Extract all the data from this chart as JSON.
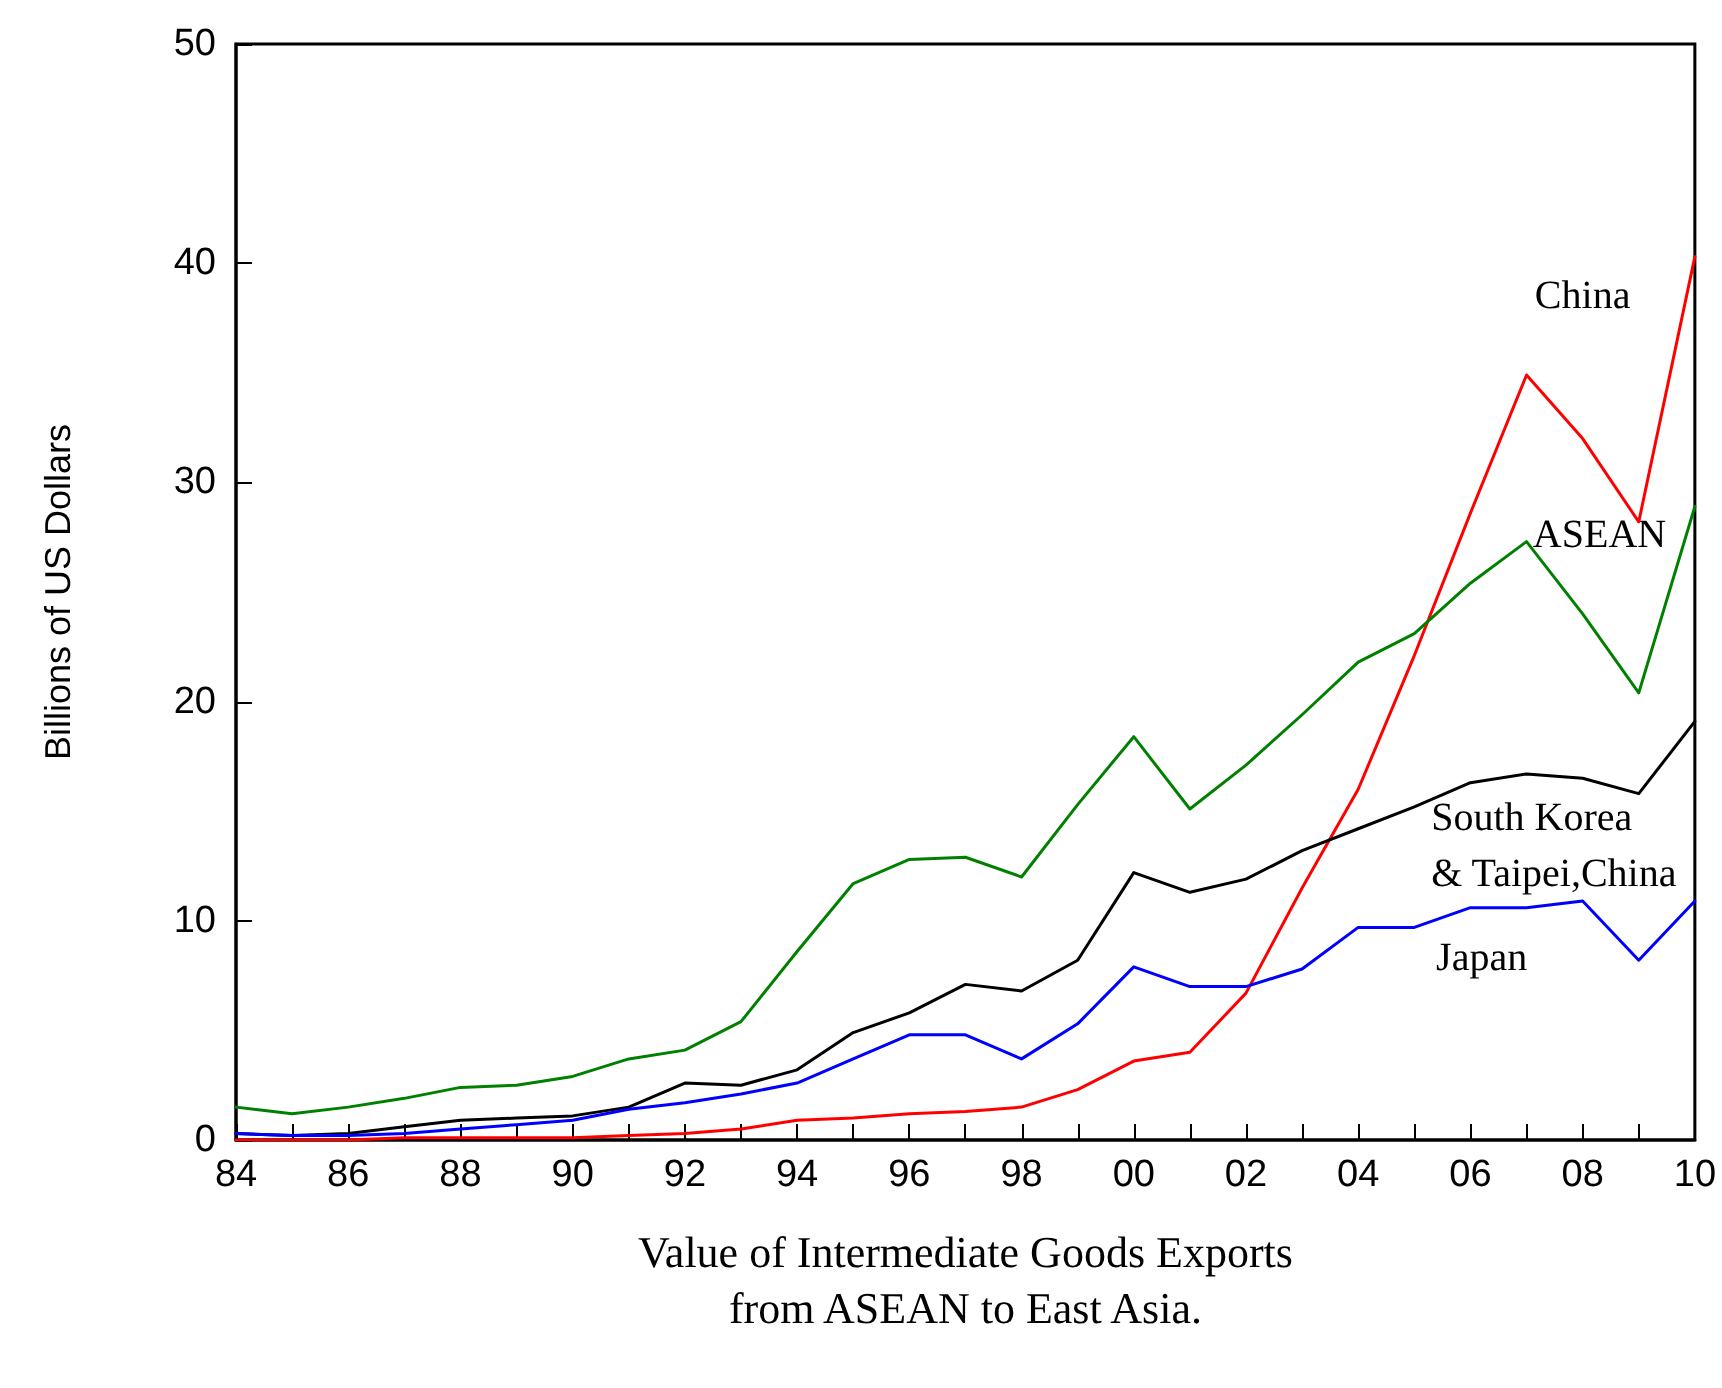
{
  "chart_data": {
    "type": "line",
    "xlabel": "Value of Intermediate Goods Exports\nfrom ASEAN to East Asia.",
    "ylabel": "Billions of US Dollars",
    "categories": [
      "84",
      null,
      "86",
      null,
      "88",
      null,
      "90",
      null,
      "92",
      null,
      "94",
      null,
      "96",
      null,
      "98",
      null,
      "00",
      null,
      "02",
      null,
      "04",
      null,
      "06",
      null,
      "08",
      null,
      "10"
    ],
    "series": [
      {
        "name": "China",
        "color": "#ff0000",
        "values": [
          0.0,
          0.0,
          0.0,
          0.1,
          0.1,
          0.1,
          0.1,
          0.2,
          0.3,
          0.5,
          0.9,
          1.0,
          1.2,
          1.3,
          1.5,
          2.3,
          3.6,
          4.0,
          6.7,
          11.5,
          16.0,
          22.1,
          28.6,
          34.9,
          32.0,
          28.2,
          40.3
        ]
      },
      {
        "name": "ASEAN",
        "color": "#008000",
        "values": [
          1.5,
          1.2,
          1.5,
          1.9,
          2.4,
          2.5,
          2.9,
          3.7,
          4.1,
          5.4,
          8.6,
          11.7,
          12.8,
          12.9,
          12.0,
          15.3,
          18.4,
          15.1,
          17.1,
          19.4,
          21.8,
          23.1,
          25.4,
          27.3,
          24.0,
          20.4,
          28.9
        ]
      },
      {
        "name": "South Korea\n& Taipei,China",
        "color": "#000000",
        "values": [
          0.3,
          0.2,
          0.3,
          0.6,
          0.9,
          1.0,
          1.1,
          1.5,
          2.6,
          2.5,
          3.2,
          4.9,
          5.8,
          7.1,
          6.8,
          8.2,
          12.2,
          11.3,
          11.9,
          13.2,
          14.2,
          15.2,
          16.3,
          16.7,
          16.5,
          15.8,
          19.1
        ]
      },
      {
        "name": "Japan",
        "color": "#0000ff",
        "values": [
          0.3,
          0.2,
          0.2,
          0.3,
          0.5,
          0.7,
          0.9,
          1.4,
          1.7,
          2.1,
          2.6,
          3.7,
          4.8,
          4.8,
          3.7,
          5.3,
          7.9,
          7.0,
          7.0,
          7.8,
          9.7,
          9.7,
          10.6,
          10.6,
          10.9,
          8.2,
          10.9
        ]
      }
    ],
    "ylim": [
      0,
      50
    ],
    "yticks": [
      0,
      10,
      20,
      30,
      40,
      50
    ],
    "grid": false,
    "legend": false,
    "marker": "none",
    "line_style": "solid"
  }
}
